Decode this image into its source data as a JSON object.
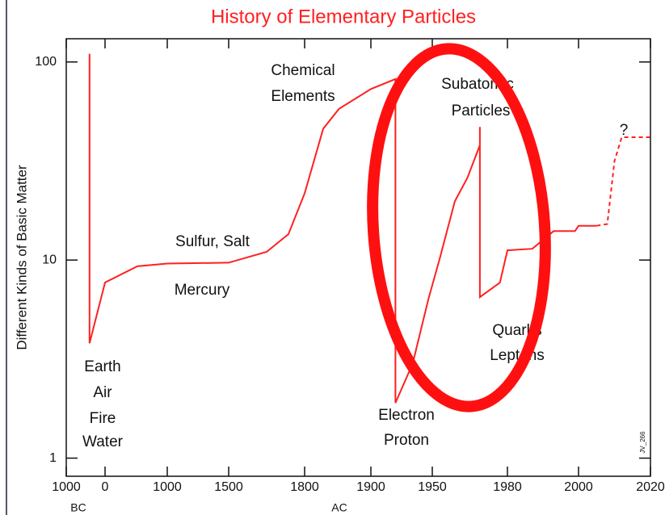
{
  "chart_data": {
    "type": "line",
    "title": "History of Elementary Particles",
    "y_label": "Different Kinds of Basic Matter",
    "log_y": true,
    "ylim": [
      0.81,
      131
    ],
    "yticks": [
      1,
      10,
      100
    ],
    "xlim": [
      -1000,
      2020
    ],
    "xticks": [
      {
        "value": -1000,
        "label": "1000"
      },
      0,
      1000,
      1500,
      1800,
      1900,
      1950,
      1980,
      2000,
      2020
    ],
    "era_labels": [
      "BC",
      "AC"
    ],
    "series": [
      {
        "name": null,
        "color": "#ff2020",
        "style": "solid",
        "x": [
          -400,
          -400,
          0,
          520,
          1000,
          1500,
          1650,
          1736,
          1800,
          1828,
          1852,
          1900,
          1920,
          1920,
          1934,
          1947,
          1953,
          1959,
          1964,
          1969,
          1969,
          1969,
          1977,
          1980,
          1987,
          1993,
          1999,
          2000,
          2005
        ],
        "values": [
          110,
          3.8,
          7.7,
          9.3,
          9.6,
          9.7,
          11,
          13.5,
          21.7,
          46,
          58,
          73,
          82,
          1.9,
          3.0,
          6.4,
          10.2,
          19.8,
          26,
          38,
          47,
          6.5,
          7.7,
          11.2,
          11.4,
          14,
          14,
          14.9,
          14.9
        ]
      },
      {
        "name": null,
        "color": "#ff2020",
        "style": "dashed",
        "x": [
          2005,
          2008,
          2010,
          2012,
          2020
        ],
        "values": [
          14.9,
          15.2,
          31.6,
          41.7,
          41.7
        ]
      }
    ],
    "annotations": [
      "Chemical",
      "Elements",
      "Subatomic",
      "Particles",
      "Sulfur, Salt",
      "Mercury",
      "Earth",
      "Air",
      "Fire",
      "Water",
      "Electron",
      "Proton",
      "Quarks",
      "Leptons",
      "?"
    ],
    "footnote": "JV_266"
  }
}
